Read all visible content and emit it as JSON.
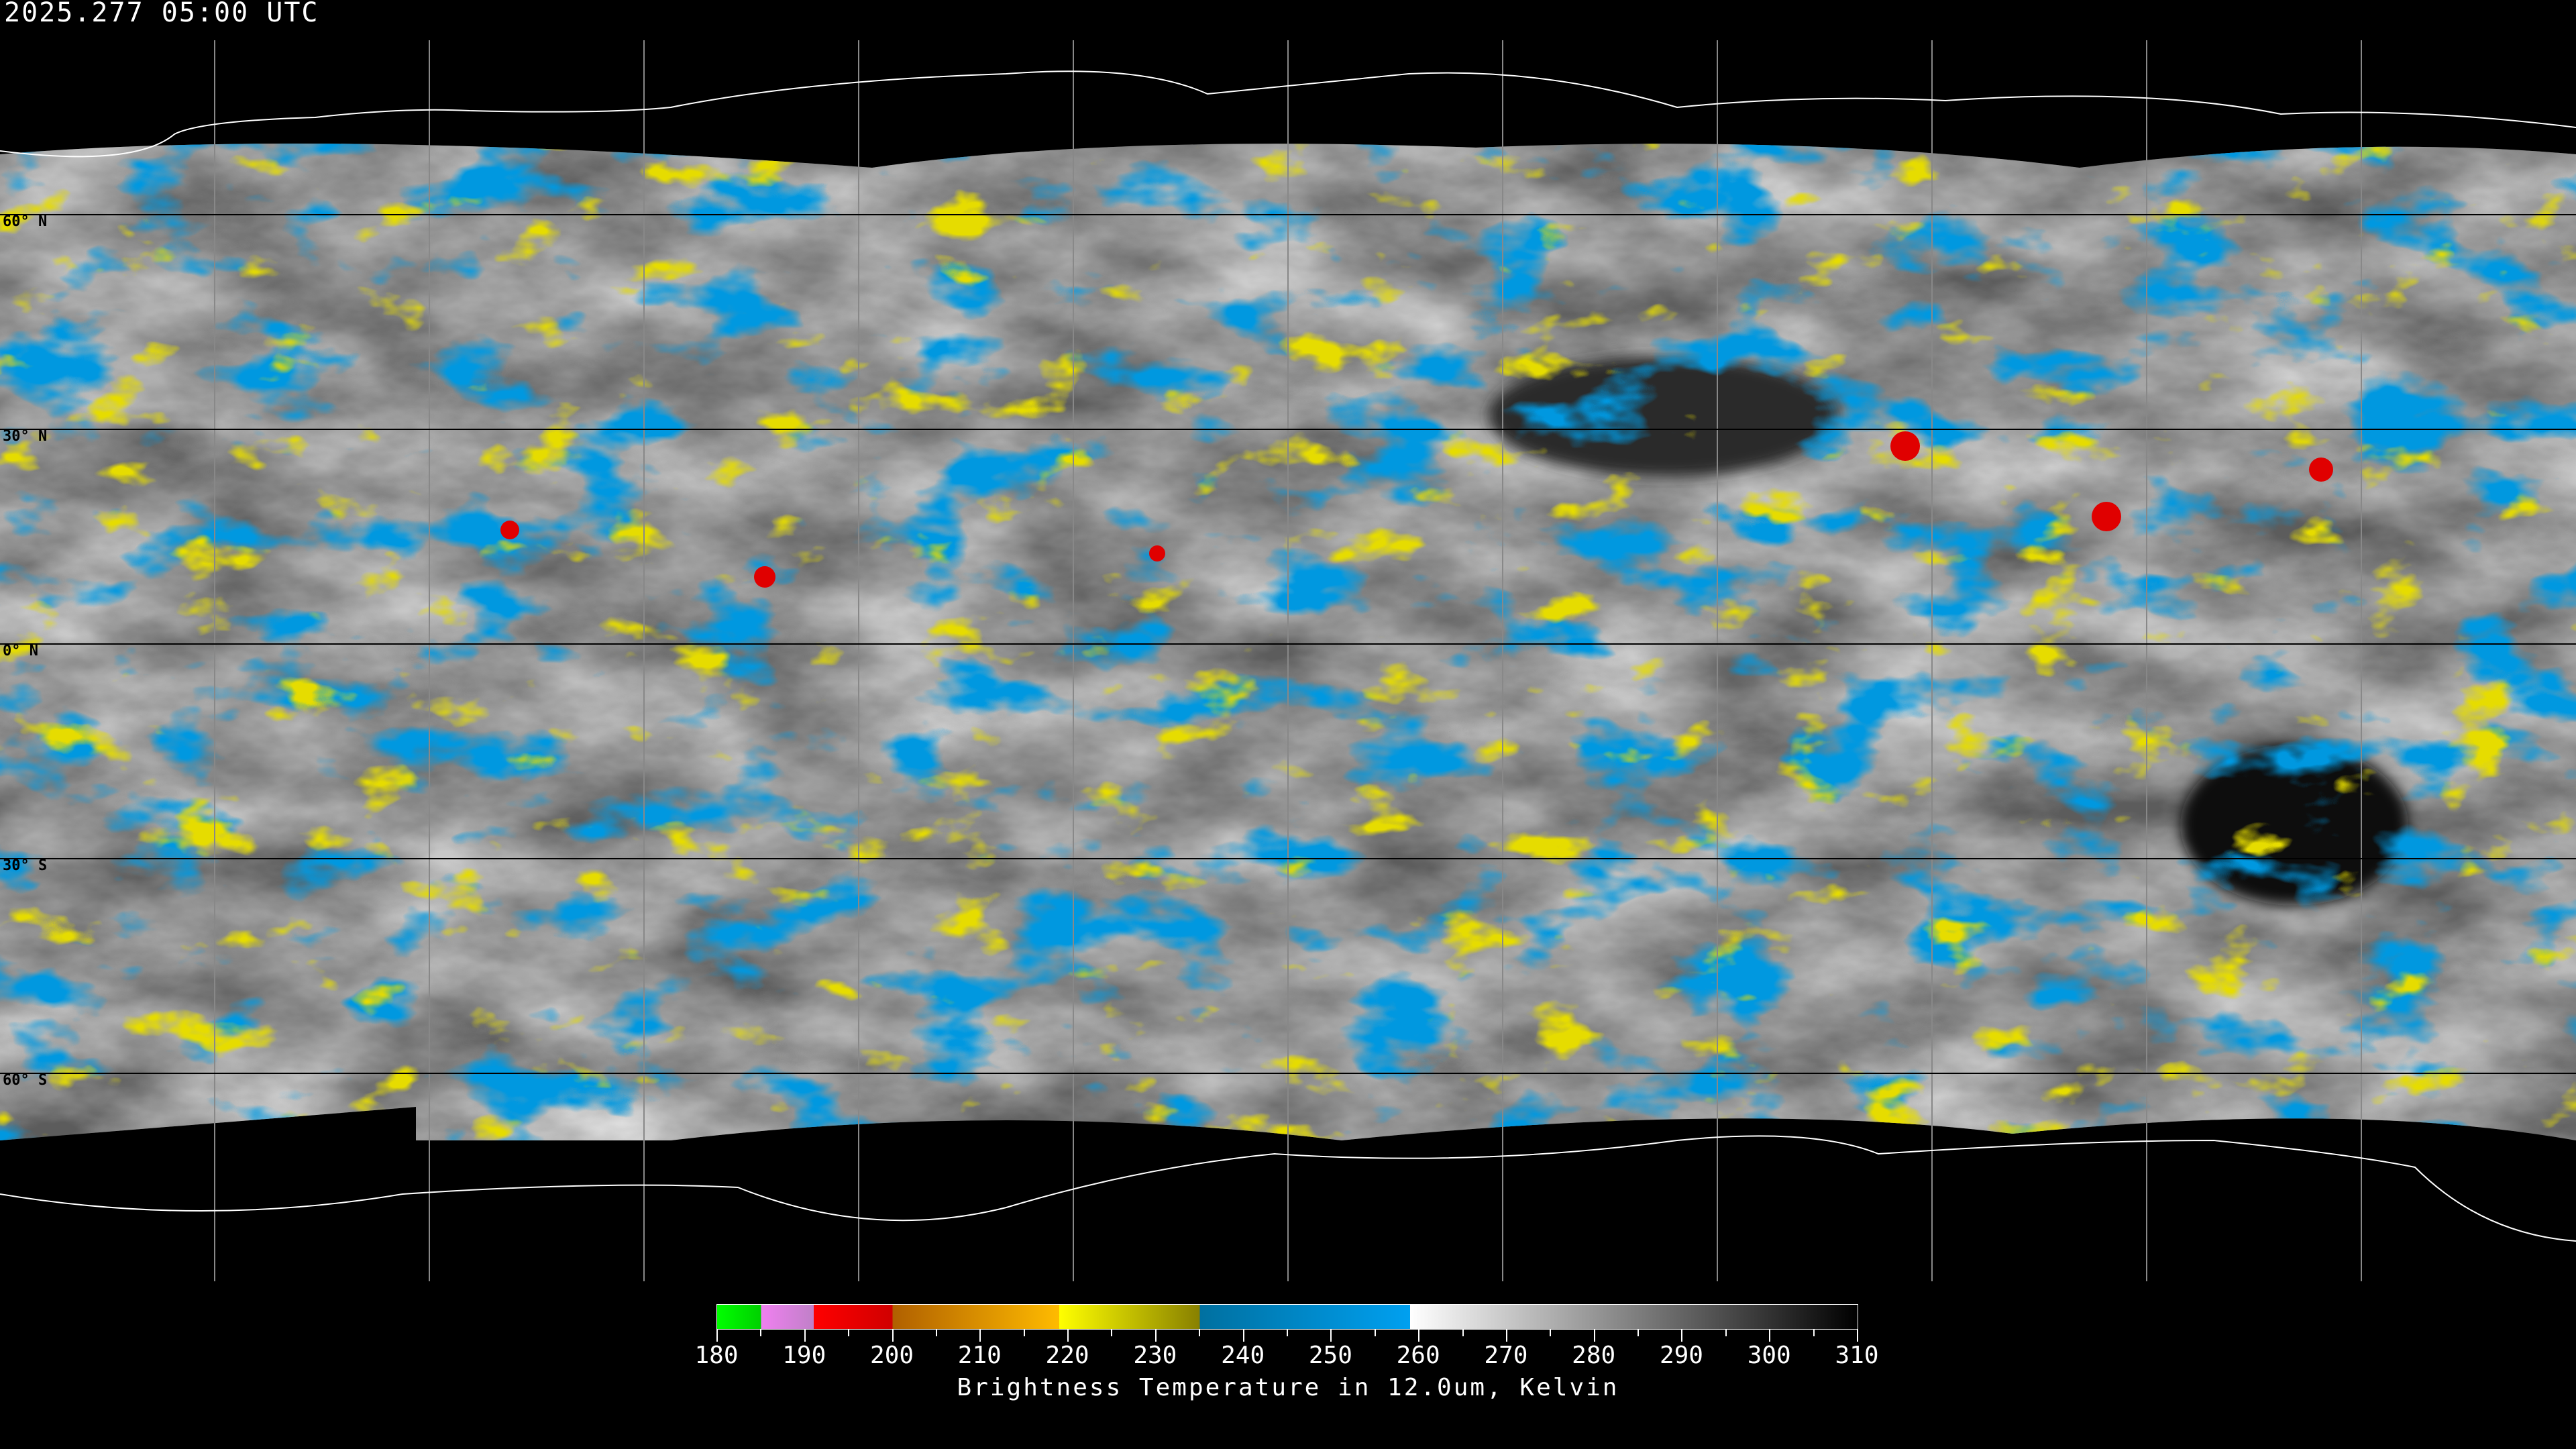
{
  "header": {
    "timestamp": "2025.277 05:00 UTC"
  },
  "map": {
    "projection": "equirectangular",
    "grid_spacing_deg": 30,
    "lat_labels": [
      "60° N",
      "30° N",
      "0° N",
      "30° S",
      "60° S"
    ],
    "background": "#000000",
    "coastline_color_on_data": "#000000",
    "coastline_color_off_data": "#ffffff",
    "gridline_color_on_data": "#000000",
    "gridline_color_off_data": "#ffffff"
  },
  "colorbar": {
    "title": "Brightness Temperature in 12.0um, Kelvin",
    "min": 180,
    "max": 310,
    "tick_labels": [
      "180",
      "190",
      "200",
      "210",
      "220",
      "230",
      "240",
      "250",
      "260",
      "270",
      "280",
      "290",
      "300",
      "310"
    ],
    "minor_tick_step": 5,
    "segments": [
      {
        "from": 180,
        "to": 185,
        "colors": [
          "#00ff00",
          "#00d000"
        ]
      },
      {
        "from": 185,
        "to": 191,
        "colors": [
          "#f080f0",
          "#c080c8"
        ]
      },
      {
        "from": 191,
        "to": 200,
        "colors": [
          "#ff0000",
          "#d00000"
        ]
      },
      {
        "from": 200,
        "to": 219,
        "colors": [
          "#b06000",
          "#ffbb00"
        ]
      },
      {
        "from": 219,
        "to": 235,
        "colors": [
          "#ffff00",
          "#888000"
        ]
      },
      {
        "from": 235,
        "to": 259,
        "colors": [
          "#0070a0",
          "#00a0f0"
        ]
      },
      {
        "from": 259,
        "to": 310,
        "colors": [
          "#ffffff",
          "#000000"
        ]
      }
    ]
  }
}
